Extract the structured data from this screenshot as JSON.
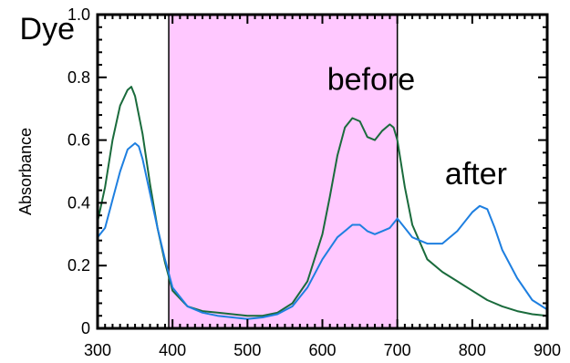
{
  "chart_data": {
    "type": "line",
    "title": "",
    "xlabel": "",
    "ylabel": "Absorbance",
    "xlim": [
      300,
      900
    ],
    "ylim": [
      0,
      1.0
    ],
    "x_ticks": [
      "300",
      "400",
      "500",
      "600",
      "700",
      "800",
      "900"
    ],
    "y_ticks": [
      "0",
      "0.2",
      "0.4",
      "0.6",
      "0.8",
      "1.0"
    ],
    "cut_off_label": "Dye",
    "highlight_band": {
      "x_start": 395,
      "x_end": 700,
      "color": "#ffc8ff"
    },
    "annotations": [
      {
        "text": "before",
        "x": 665,
        "y": 0.76
      },
      {
        "text": "after",
        "x": 805,
        "y": 0.46
      }
    ],
    "series": [
      {
        "name": "before",
        "color": "#1a6b3c",
        "x": [
          300,
          310,
          320,
          330,
          340,
          345,
          350,
          360,
          370,
          380,
          390,
          400,
          420,
          440,
          460,
          480,
          500,
          520,
          540,
          560,
          580,
          600,
          610,
          620,
          630,
          640,
          650,
          660,
          670,
          680,
          690,
          695,
          700,
          710,
          720,
          740,
          760,
          780,
          800,
          820,
          840,
          860,
          880,
          900
        ],
        "values": [
          0.34,
          0.45,
          0.6,
          0.71,
          0.76,
          0.77,
          0.74,
          0.62,
          0.46,
          0.32,
          0.21,
          0.12,
          0.07,
          0.055,
          0.05,
          0.045,
          0.04,
          0.04,
          0.05,
          0.08,
          0.15,
          0.3,
          0.42,
          0.55,
          0.64,
          0.67,
          0.66,
          0.61,
          0.6,
          0.63,
          0.65,
          0.64,
          0.6,
          0.45,
          0.33,
          0.22,
          0.18,
          0.15,
          0.12,
          0.09,
          0.07,
          0.055,
          0.045,
          0.04
        ]
      },
      {
        "name": "after",
        "color": "#1e7fe0",
        "x": [
          300,
          310,
          320,
          330,
          340,
          350,
          355,
          360,
          370,
          380,
          390,
          400,
          420,
          440,
          460,
          480,
          500,
          520,
          540,
          560,
          580,
          600,
          620,
          640,
          650,
          660,
          670,
          680,
          690,
          700,
          710,
          720,
          740,
          760,
          780,
          800,
          810,
          820,
          830,
          840,
          860,
          880,
          900
        ],
        "values": [
          0.29,
          0.32,
          0.41,
          0.5,
          0.57,
          0.59,
          0.58,
          0.54,
          0.43,
          0.32,
          0.22,
          0.13,
          0.07,
          0.05,
          0.04,
          0.035,
          0.03,
          0.035,
          0.045,
          0.07,
          0.13,
          0.22,
          0.29,
          0.33,
          0.33,
          0.31,
          0.3,
          0.31,
          0.32,
          0.35,
          0.32,
          0.29,
          0.27,
          0.27,
          0.31,
          0.37,
          0.39,
          0.38,
          0.32,
          0.25,
          0.16,
          0.09,
          0.06
        ]
      }
    ],
    "grid": false,
    "legend": "none"
  }
}
